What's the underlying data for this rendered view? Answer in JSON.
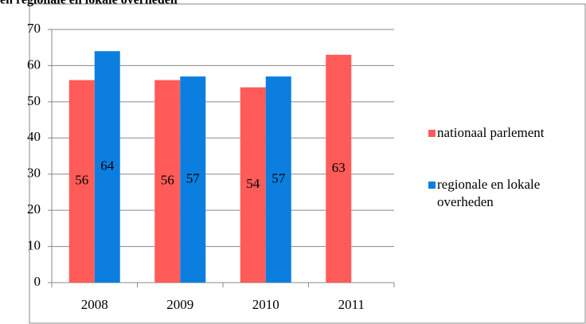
{
  "chart_data": {
    "type": "bar",
    "title": "en regionale en lokale overheden",
    "categories": [
      "2008",
      "2009",
      "2010",
      "2011"
    ],
    "series": [
      {
        "name": "nationaal parlement",
        "color": "#ff5b58",
        "values": [
          56,
          56,
          54,
          63
        ]
      },
      {
        "name": "regionale en lokale overheden",
        "color": "#0b7ee0",
        "values": [
          64,
          57,
          57,
          null
        ]
      }
    ],
    "ylim": [
      0,
      70
    ],
    "yticks": [
      0,
      10,
      20,
      30,
      40,
      50,
      60,
      70
    ],
    "grid": true,
    "legend": "right"
  }
}
